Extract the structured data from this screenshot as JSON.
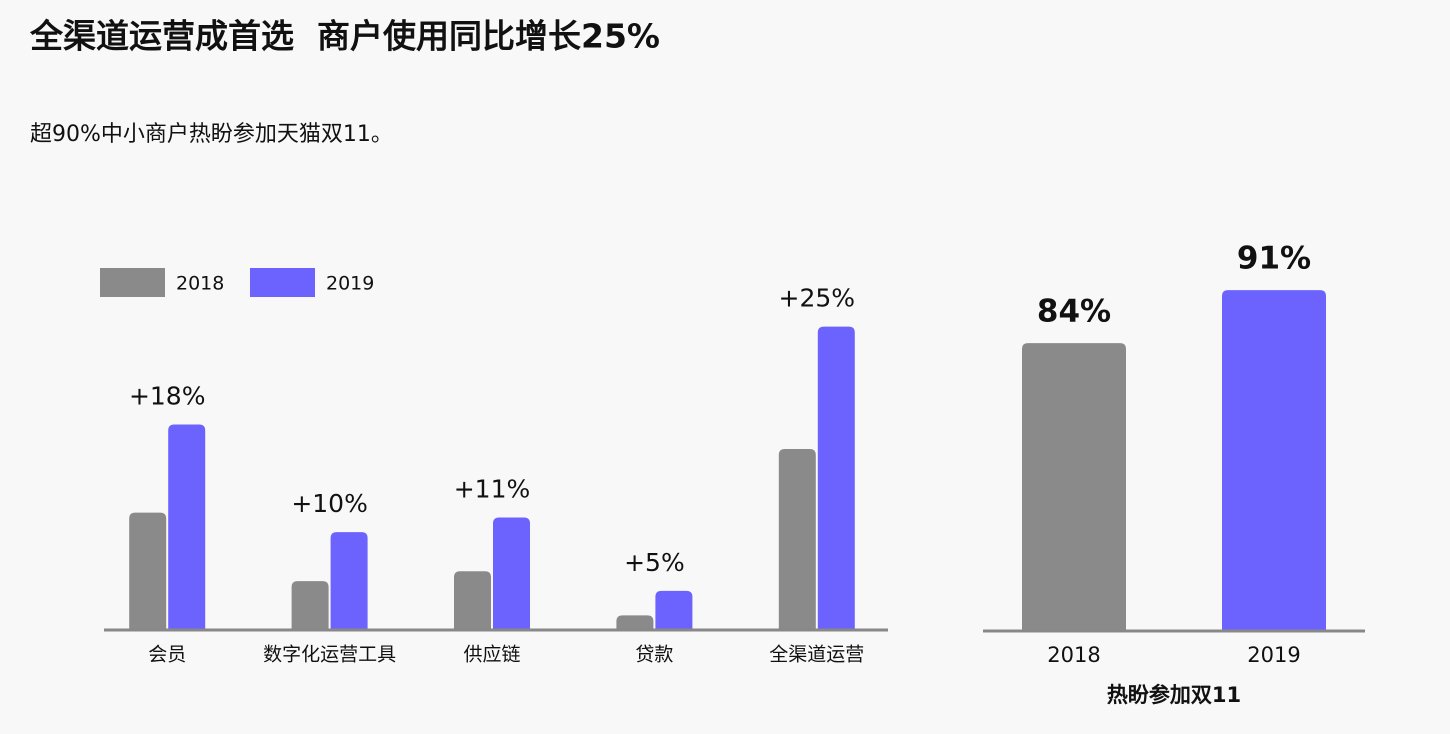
{
  "title": "全渠道运营成首选  商户使用同比增长25%",
  "subtitle": "超90%中小商户热盼参加天猫双11。",
  "chart_data": [
    {
      "type": "bar",
      "categories": [
        "会员",
        "数字化运营工具",
        "供应链",
        "贷款",
        "全渠道运营"
      ],
      "series": [
        {
          "name": "2018",
          "color": "#8a8a8a",
          "values": [
            24,
            10,
            12,
            3,
            37
          ]
        },
        {
          "name": "2019",
          "color": "#6c63ff",
          "values": [
            42,
            20,
            23,
            8,
            62
          ]
        }
      ],
      "growth": {
        "values": [
          18,
          10,
          11,
          5,
          25
        ],
        "value_labels": [
          "+18%",
          "+10%",
          "+11%",
          "+5%",
          "+25%"
        ]
      },
      "ylim": [
        0,
        65
      ],
      "legend": "top-left"
    },
    {
      "type": "bar",
      "categories": [
        "2018",
        "2019"
      ],
      "values": [
        84,
        91
      ],
      "value_labels": [
        "84%",
        "91%"
      ],
      "colors": [
        "#8a8a8a",
        "#6c63ff"
      ],
      "xlabel": "热盼参加双11",
      "ylim": [
        46,
        100
      ]
    }
  ]
}
